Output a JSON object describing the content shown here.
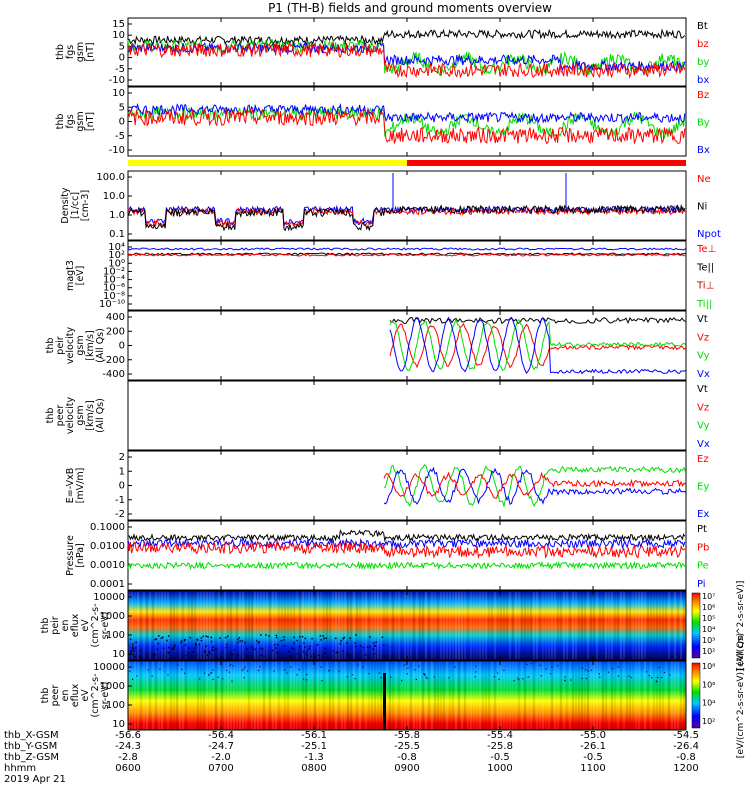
{
  "title": "P1 (TH-B) fields and ground moments overview",
  "colors": {
    "black": "#000000",
    "red": "#ff0000",
    "green": "#00dd00",
    "blue": "#0000ff",
    "yellow": "#ffff00",
    "darkred": "#cc0000"
  },
  "chart_data": [
    {
      "id": "fgs-gsm",
      "type": "line",
      "ylabel": [
        "thb",
        "fgs",
        "gsm",
        "[nT]"
      ],
      "yticks": [
        "15",
        "10",
        "5",
        "0",
        "-5",
        "-10"
      ],
      "ylim": [
        -12,
        16
      ],
      "legend": [
        {
          "name": "Bt",
          "color": "#000000"
        },
        {
          "name": "bz",
          "color": "#ff0000"
        },
        {
          "name": "by",
          "color": "#00dd00"
        },
        {
          "name": "bx",
          "color": "#0000ff"
        }
      ]
    },
    {
      "id": "fgs-gsm-2",
      "type": "line",
      "ylabel": [
        "thb",
        "fgs",
        "gsm",
        "[nT]"
      ],
      "yticks": [
        "10",
        "5",
        "0",
        "-5",
        "-10"
      ],
      "ylim": [
        -13,
        14
      ],
      "legend": [
        {
          "name": "Bz",
          "color": "#ff0000"
        },
        {
          "name": "By",
          "color": "#00dd00"
        },
        {
          "name": "Bx",
          "color": "#0000ff"
        }
      ]
    },
    {
      "id": "mode-bar",
      "type": "bar",
      "segments": [
        {
          "color": "#ffff00",
          "from": 0,
          "to": 0.5
        },
        {
          "color": "#ff0000",
          "from": 0.5,
          "to": 1
        }
      ]
    },
    {
      "id": "density",
      "type": "line",
      "yscale": "log",
      "ylabel": [
        "Density",
        "[1/cc]",
        "[cm-3]"
      ],
      "yticks": [
        "100.0",
        "10.0",
        "1.0",
        "0.1"
      ],
      "ylim": [
        0.1,
        300
      ],
      "legend": [
        {
          "name": "Ne",
          "color": "#ff0000"
        },
        {
          "name": "Ni",
          "color": "#000000"
        },
        {
          "name": "Npot",
          "color": "#0000ff"
        }
      ]
    },
    {
      "id": "temperature",
      "type": "line",
      "yscale": "log",
      "ylabel": [
        "magt3",
        "[eV]"
      ],
      "yticks": [
        "10⁴",
        "10²",
        "10⁰",
        "10⁻²",
        "10⁻⁴",
        "10⁻⁶",
        "10⁻⁸",
        "10⁻¹⁰"
      ],
      "legend": [
        {
          "name": "Te⊥",
          "color": "#ff0000"
        },
        {
          "name": "Te||",
          "color": "#000000"
        },
        {
          "name": "Ti⊥",
          "color": "#cc0000"
        },
        {
          "name": "Ti||",
          "color": "#00dd00"
        }
      ]
    },
    {
      "id": "peir-velocity",
      "type": "line",
      "ylabel": [
        "thb",
        "peir",
        "velocity",
        "gsm",
        "[km/s]",
        "(All Qs)"
      ],
      "yticks": [
        "400",
        "200",
        "0",
        "-200",
        "-400"
      ],
      "ylim": [
        -400,
        400
      ],
      "legend": [
        {
          "name": "Vt",
          "color": "#000000"
        },
        {
          "name": "Vz",
          "color": "#ff0000"
        },
        {
          "name": "Vy",
          "color": "#00dd00"
        },
        {
          "name": "Vx",
          "color": "#0000ff"
        }
      ]
    },
    {
      "id": "peer-velocity",
      "type": "line",
      "ylabel": [
        "thb",
        "peer",
        "velocity",
        "gsm",
        "[km/s]",
        "(All Qs)"
      ],
      "yticks": [],
      "legend": [
        {
          "name": "Vt",
          "color": "#000000"
        },
        {
          "name": "Vz",
          "color": "#ff0000"
        },
        {
          "name": "Vy",
          "color": "#00dd00"
        },
        {
          "name": "Vx",
          "color": "#0000ff"
        }
      ]
    },
    {
      "id": "efield",
      "type": "line",
      "ylabel": [
        "E=-VxB",
        "[mV/m]"
      ],
      "yticks": [
        "2",
        "1",
        "0",
        "-1",
        "-2"
      ],
      "ylim": [
        -2.5,
        2.5
      ],
      "legend": [
        {
          "name": "Ez",
          "color": "#ff0000"
        },
        {
          "name": "Ey",
          "color": "#00dd00"
        },
        {
          "name": "Ex",
          "color": "#0000ff"
        }
      ]
    },
    {
      "id": "pressure",
      "type": "line",
      "yscale": "log",
      "ylabel": [
        "Pressure",
        "[nPa]"
      ],
      "yticks": [
        "0.1000",
        "0.0100",
        "0.0010",
        "0.0001"
      ],
      "legend": [
        {
          "name": "Pt",
          "color": "#000000"
        },
        {
          "name": "Pb",
          "color": "#ff0000"
        },
        {
          "name": "Pe",
          "color": "#00dd00"
        },
        {
          "name": "Pi",
          "color": "#0000ff"
        }
      ]
    },
    {
      "id": "peir-eflux",
      "type": "heatmap",
      "ylabel": [
        "thb",
        "peir",
        "en",
        "eflux",
        "eV",
        "(cm^2-s-",
        "sr-eV)"
      ],
      "yticks": [
        "10000",
        "1000",
        "100",
        "10"
      ],
      "colorbar_ticks": [
        "10⁷",
        "10⁶",
        "10⁵",
        "10⁴",
        "10³",
        "10²"
      ],
      "colorbar_label": "[eV/(cm^2-s-sr-eV)]"
    },
    {
      "id": "peer-eflux",
      "type": "heatmap",
      "ylabel": [
        "thb",
        "peer",
        "en",
        "eflux",
        "eV",
        "(cm^2-s-",
        "sr-eV)"
      ],
      "yticks": [
        "10000",
        "1000",
        "100",
        "10"
      ],
      "colorbar_ticks": [
        "10⁸",
        "10⁶",
        "10⁴",
        "10²"
      ],
      "colorbar_label": "[eV/(cm^2-s-sr-eV)] (All Qs)"
    }
  ],
  "x_axis": {
    "row_labels": [
      "thb_X-GSM",
      "thb_Y-GSM",
      "thb_Z-GSM",
      "hhmm",
      "2019 Apr 21"
    ],
    "columns": [
      [
        "-56.6",
        "-24.3",
        "-2.8",
        "0600"
      ],
      [
        "-56.4",
        "-24.7",
        "-2.0",
        "0700"
      ],
      [
        "-56.1",
        "-25.1",
        "-1.3",
        "0800"
      ],
      [
        "-55.8",
        "-25.5",
        "-0.8",
        "0900"
      ],
      [
        "-55.4",
        "-25.8",
        "-0.5",
        "1000"
      ],
      [
        "-55.0",
        "-26.1",
        "-0.5",
        "1100"
      ],
      [
        "-54.5",
        "-26.4",
        "-0.8",
        "1200"
      ]
    ]
  }
}
